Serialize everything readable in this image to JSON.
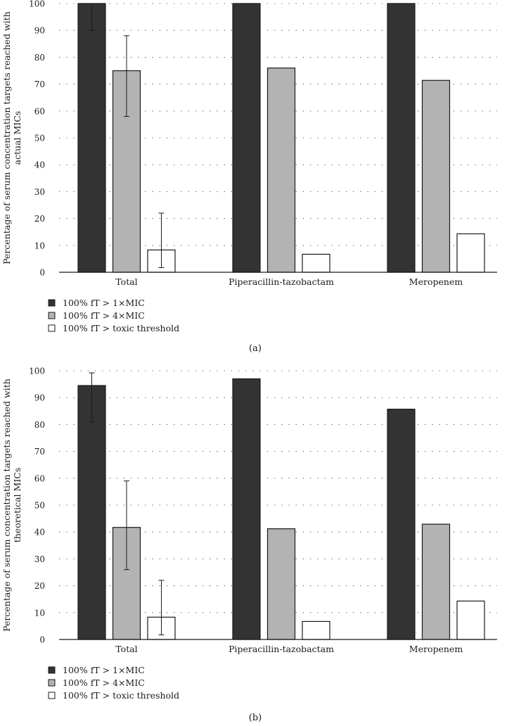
{
  "legend": [
    {
      "label": "100% fT > 1×MIC",
      "color": "#333333"
    },
    {
      "label": "100% fT > 4×MIC",
      "color": "#b3b3b3"
    },
    {
      "label": "100% fT > toxic threshold",
      "color": "#ffffff"
    }
  ],
  "chart_data": [
    {
      "type": "bar",
      "panel_label": "(a)",
      "ylabel_lines": [
        "Percentage of serum concentration targets reached with",
        "actual MICs"
      ],
      "categories": [
        "Total",
        "Piperacillin-tazobactam",
        "Meropenem"
      ],
      "yticks": [
        0,
        10,
        20,
        30,
        40,
        50,
        60,
        70,
        80,
        90,
        100
      ],
      "ylim": [
        0,
        100
      ],
      "grid": "dotted horizontal",
      "series": [
        {
          "name": "100% fT > 1×MIC",
          "values": [
            100,
            100,
            100
          ],
          "error_low": [
            90,
            null,
            null
          ],
          "error_high": [
            100,
            null,
            null
          ]
        },
        {
          "name": "100% fT > 4×MIC",
          "values": [
            75,
            76,
            71.4
          ],
          "error_low": [
            58,
            null,
            null
          ],
          "error_high": [
            88,
            null,
            null
          ]
        },
        {
          "name": "100% fT > toxic threshold",
          "values": [
            8.3,
            6.7,
            14.3
          ],
          "error_low": [
            1.7,
            null,
            null
          ],
          "error_high": [
            22,
            null,
            null
          ]
        }
      ]
    },
    {
      "type": "bar",
      "panel_label": "(b)",
      "ylabel_lines": [
        "Percentage of serum concentration targets reached with",
        "theoretical MICs"
      ],
      "categories": [
        "Total",
        "Piperacillin-tazobactam",
        "Meropenem"
      ],
      "yticks": [
        0,
        10,
        20,
        30,
        40,
        50,
        60,
        70,
        80,
        90,
        100
      ],
      "ylim": [
        0,
        100
      ],
      "grid": "dotted horizontal",
      "series": [
        {
          "name": "100% fT > 1×MIC",
          "values": [
            94.5,
            97,
            85.7
          ],
          "error_low": [
            81,
            null,
            null
          ],
          "error_high": [
            99.2,
            null,
            null
          ]
        },
        {
          "name": "100% fT > 4×MIC",
          "values": [
            41.7,
            41.2,
            42.9
          ],
          "error_low": [
            26,
            null,
            null
          ],
          "error_high": [
            59,
            null,
            null
          ]
        },
        {
          "name": "100% fT > toxic threshold",
          "values": [
            8.3,
            6.7,
            14.3
          ],
          "error_low": [
            1.7,
            null,
            null
          ],
          "error_high": [
            22,
            null,
            null
          ]
        }
      ]
    }
  ]
}
